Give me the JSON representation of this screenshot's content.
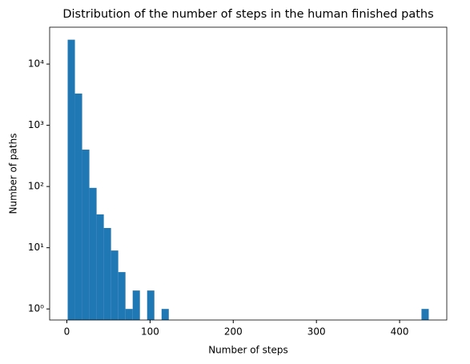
{
  "chart_data": {
    "type": "histogram",
    "title": "Distribution of the number of steps in the human finished paths",
    "x_label": "Number of steps",
    "y_label": "Number of paths",
    "color": "#1f77b4",
    "y_scale": "log",
    "bins": [
      1,
      9.68,
      18.36,
      27.04,
      35.72,
      44.4,
      53.08,
      61.76,
      70.44,
      79.12,
      87.8,
      96.48,
      105.16,
      113.84,
      122.52,
      131.2,
      139.88,
      148.56,
      157.24,
      165.92,
      174.6,
      183.28,
      191.96,
      200.64,
      209.32,
      218,
      226.68,
      235.36,
      244.04,
      252.72,
      261.4,
      270.08,
      278.76,
      287.44,
      296.12,
      304.8,
      313.48,
      322.16,
      330.84,
      339.52,
      348.2,
      356.88,
      365.56,
      374.24,
      382.92,
      391.6,
      400.28,
      408.96,
      417.64,
      426.32,
      435
    ],
    "values": [
      25000,
      3300,
      400,
      95,
      35,
      21,
      9,
      4,
      1,
      2,
      0,
      2,
      0,
      1,
      0,
      0,
      0,
      0,
      0,
      0,
      0,
      0,
      0,
      0,
      0,
      0,
      0,
      0,
      0,
      0,
      0,
      0,
      0,
      0,
      0,
      0,
      0,
      0,
      0,
      0,
      0,
      0,
      0,
      0,
      0,
      0,
      0,
      0,
      0,
      1
    ],
    "xlim": [
      -20.7,
      456.7
    ],
    "xticks": [
      0,
      100,
      200,
      300,
      400
    ],
    "ylim": [
      0.66,
      40000
    ],
    "yticks": [
      {
        "value": 1,
        "label": "10⁰"
      },
      {
        "value": 10,
        "label": "10¹"
      },
      {
        "value": 100,
        "label": "10²"
      },
      {
        "value": 1000,
        "label": "10³"
      },
      {
        "value": 10000,
        "label": "10⁴"
      }
    ]
  }
}
